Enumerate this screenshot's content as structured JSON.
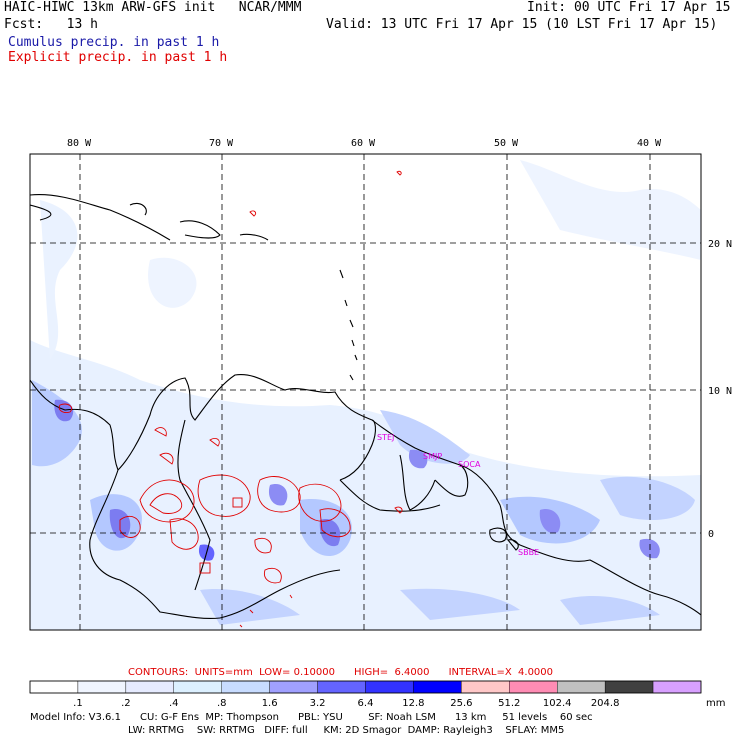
{
  "header": {
    "title_left": "HAIC-HIWC 13km ARW-GFS init   NCAR/MMM",
    "init": "Init: 00 UTC Fri 17 Apr 15",
    "fcst": "Fcst:   13 h",
    "valid": "Valid: 13 UTC Fri 17 Apr 15 (10 LST Fri 17 Apr 15)",
    "cumulus": "Cumulus precip. in past 1 h",
    "explicit": "Explicit precip. in past 1 h"
  },
  "map": {
    "lon_labels": [
      "80 W",
      "70 W",
      "60 W",
      "50 W",
      "40 W"
    ],
    "lat_labels": [
      "20 N",
      "10 N",
      "0"
    ],
    "stations": [
      "STEJ",
      "SMJP",
      "SOCA",
      "SBBE"
    ],
    "colors": {
      "precip_light": "#e6f0ff",
      "precip_mid": "#b4c8ff",
      "precip_dark": "#7c7cf0",
      "contour": "#e00000",
      "station": "#e000e0"
    }
  },
  "contours_line": "CONTOURS:  UNITS=mm  LOW= 0.10000      HIGH=  6.4000      INTERVAL=X  4.0000",
  "legend": {
    "labels": [
      ".1",
      ".2",
      ".4",
      ".8",
      "1.6",
      "3.2",
      "6.4",
      "12.8",
      "25.6",
      "51.2",
      "102.4",
      "204.8"
    ],
    "unit": "mm",
    "colors": [
      "#ffffff",
      "#f0f5ff",
      "#e6ebff",
      "#dcf0ff",
      "#c8dcff",
      "#a0a0ff",
      "#6464ff",
      "#3232ff",
      "#0000ff",
      "#ffc8c8",
      "#ff8cb4",
      "#c0c0c0",
      "#404040",
      "#d8a0ff"
    ]
  },
  "footer": {
    "line1": "Model Info: V3.6.1      CU: G-F Ens  MP: Thompson      PBL: YSU        SF: Noah LSM      13 km     51 levels    60 sec",
    "line2": "LW: RRTMG    SW: RRTMG   DIFF: full     KM: 2D Smagor  DAMP: Rayleigh3    SFLAY: MM5"
  }
}
